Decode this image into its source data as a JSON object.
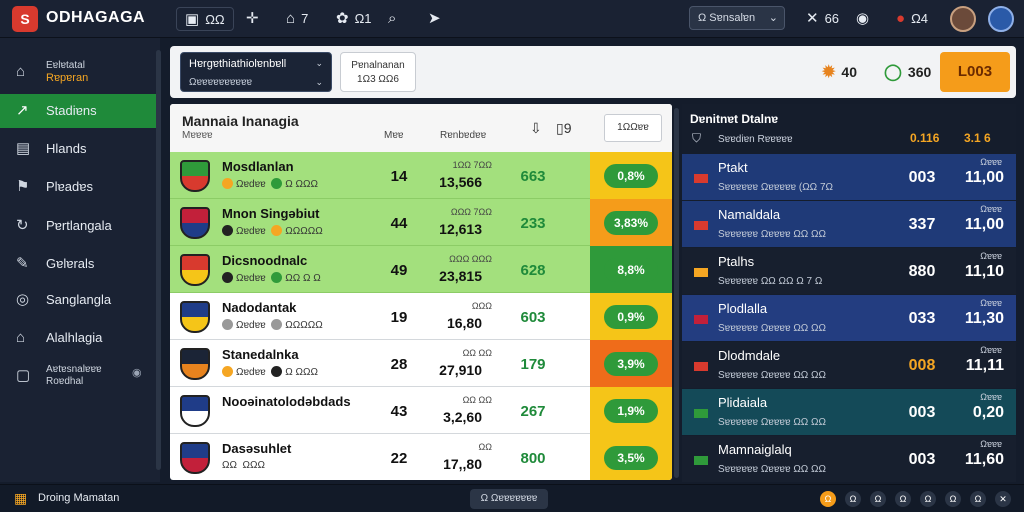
{
  "app": {
    "logo": "S",
    "brand": "ODHAGAGA"
  },
  "topbar": {
    "icons": [
      {
        "name": "calendar-icon",
        "glyph": "▣",
        "label": "ΩΩ"
      },
      {
        "name": "plus-icon",
        "glyph": "✛",
        "label": ""
      },
      {
        "name": "home-icon",
        "glyph": "⌂",
        "label": "7"
      },
      {
        "name": "settings-icon",
        "glyph": "✿",
        "label": "Ω1"
      },
      {
        "name": "search-icon",
        "glyph": "⌕",
        "label": ""
      },
      {
        "name": "pin-icon",
        "glyph": "➤",
        "label": ""
      }
    ],
    "search": {
      "label": "Ω Sɐnsalɐn",
      "chevron": "⌄"
    },
    "right_icons": [
      {
        "name": "close-icon",
        "glyph": "✕",
        "label": "66"
      },
      {
        "name": "clock-icon",
        "glyph": "◉",
        "label": ""
      },
      {
        "name": "bell-icon",
        "glyph": "●",
        "label": "Ω4"
      }
    ]
  },
  "sidebar": {
    "items": [
      {
        "icon": "home-icon",
        "glyph": "⌂",
        "label": "Rɐpɐran",
        "sublabel": "Eɐlɐtatal",
        "active": false
      },
      {
        "icon": "chart-icon",
        "glyph": "↗",
        "label": "Stadiɐns",
        "active": true
      },
      {
        "icon": "board-icon",
        "glyph": "▤",
        "label": "Hlands",
        "active": false
      },
      {
        "icon": "users-icon",
        "glyph": "⚑",
        "label": "Plɐadɐs",
        "active": false
      },
      {
        "icon": "refresh-icon",
        "glyph": "↻",
        "label": "Pɐrtlangala",
        "active": false
      },
      {
        "icon": "tools-icon",
        "glyph": "✎",
        "label": "Gɐlɐrals",
        "active": false
      },
      {
        "icon": "gear-icon",
        "glyph": "◎",
        "label": "Sanglangla",
        "active": false
      },
      {
        "icon": "building-icon",
        "glyph": "⌂",
        "label": "Alalhlagia",
        "active": false
      },
      {
        "icon": "monitor-icon",
        "glyph": "▢",
        "label": "Roɐdhal",
        "sublabel": "Aɐtɐsnalɐɐɐ",
        "active": false
      }
    ]
  },
  "toolbar": {
    "dropdown": {
      "line1": "Hɐrgɐthiathiolɐnbɐll",
      "line2": "Ωɐɐɐɐɐɐɐɐɐɐ"
    },
    "outline_btn": {
      "line1": "Pɐnalnanan",
      "line2": "1Ω3 ΩΩ6"
    },
    "stats": [
      {
        "icon": "fire-icon",
        "glyph": "✹",
        "value": "40",
        "color": "#e7831e"
      },
      {
        "icon": "timer-icon",
        "glyph": "◯",
        "value": "360",
        "color": "#2f9a3a"
      }
    ],
    "cta": "L003"
  },
  "table": {
    "title": "Mannaia Inanagia",
    "subtitle": "Mɐɐɐɐ",
    "col_headers": [
      "Mɐɐ",
      "Rɐnbɐdɐɐ"
    ],
    "action_label": "1ΩΩɐɐ",
    "rows": [
      {
        "name": "Mosdlanlan",
        "meta_a": "Ωɐdɐɐ",
        "meta_b": "Ω ΩΩΩ",
        "c1": "14",
        "c2_sub": "1ΩΩ 7ΩΩ",
        "c2": "13,566",
        "c3": "663",
        "pct": "0,8%",
        "highlight": true,
        "pct_bg": "#f5c518",
        "crest": [
          "#2f9a3a",
          "#d83a2e"
        ],
        "coins": [
          "#f5a623",
          "#2f9a3a"
        ]
      },
      {
        "name": "Mnon Singəbiut",
        "meta_a": "Ωɐdɐɐ",
        "meta_b": "ΩΩΩΩΩ",
        "c1": "44",
        "c2_sub": "ΩΩΩ 7ΩΩ",
        "c2": "12,613",
        "c3": "233",
        "pct": "3,83%",
        "highlight": true,
        "pct_bg": "#f59c1a",
        "crest": [
          "#c2203a",
          "#1f3c88"
        ],
        "coins": [
          "#222",
          "#f5a623"
        ]
      },
      {
        "name": "Dicsnoodnalc",
        "meta_a": "Ωɐdɐɐ",
        "meta_b": "ΩΩ Ω Ω",
        "c1": "49",
        "c2_sub": "ΩΩΩ ΩΩΩ",
        "c2": "23,815",
        "c3": "628",
        "pct": "8,8%",
        "highlight": true,
        "pct_bg": "#2f9a3a",
        "crest": [
          "#d83a2e",
          "#f5c518"
        ],
        "coins": [
          "#222",
          "#2f9a3a"
        ]
      },
      {
        "name": "Nadodantak",
        "meta_a": "Ωɐdɐɐ",
        "meta_b": "ΩΩΩΩΩ",
        "c1": "19",
        "c2_sub": "ΩΩΩ",
        "c2": "16,80",
        "c3": "603",
        "pct": "0,9%",
        "highlight": false,
        "pct_bg": "#f5c518",
        "crest": [
          "#1f3c88",
          "#f5c518"
        ],
        "coins": [
          "#999",
          "#999"
        ]
      },
      {
        "name": "Stanedalnka",
        "meta_a": "Ωɐdɐɐ",
        "meta_b": "Ω ΩΩΩ",
        "c1": "28",
        "c2_sub": "ΩΩ ΩΩ",
        "c2": "27,910",
        "c3": "179",
        "pct": "3,9%",
        "highlight": false,
        "pct_bg": "#ef6c1a",
        "crest": [
          "#1b2436",
          "#e7831e"
        ],
        "coins": [
          "#f5a623",
          "#222"
        ]
      },
      {
        "name": "Nooəinatolodəbdads",
        "meta_a": "",
        "meta_b": "",
        "c1": "43",
        "c2_sub": "ΩΩ ΩΩ",
        "c2": "3,2,60",
        "c3": "267",
        "pct": "1,9%",
        "highlight": false,
        "pct_bg": "#f5c518",
        "crest": [
          "#1f3c88",
          "#ffffff"
        ],
        "coins": []
      },
      {
        "name": "Dasəsuhlet",
        "meta_a": "ΩΩ",
        "meta_b": "ΩΩΩ",
        "c1": "22",
        "c2_sub": "ΩΩ",
        "c2": "17,,80",
        "c3": "800",
        "pct": "3,5%",
        "highlight": false,
        "pct_bg": "#f5c518",
        "crest": [
          "#1f3c88",
          "#c2203a"
        ],
        "coins": []
      }
    ]
  },
  "rpanel": {
    "title": "Dɐnitnɐt Dtalnɐ",
    "sub": "Sɐɐdiɐn Rɐɐɐɐɐ",
    "v1": "0.116",
    "v2": "3.1 6",
    "rows": [
      {
        "name": "Ptakt",
        "meta": "Sɐɐɐɐɐɐ Ωɐɐɐɐɐ (ΩΩ 7Ω",
        "v1": "003",
        "v2_sub": "Ωɐɐɐ",
        "v2": "11,00",
        "bg": "#1f3a78",
        "flag": "#d83a2e",
        "v1color": "#fff"
      },
      {
        "name": "Namaldala",
        "meta": "Sɐɐɐɐɐɐ Ωɐɐɐɐ ΩΩ ΩΩ",
        "v1": "337",
        "v2_sub": "Ωɐɐɐ",
        "v2": "11,00",
        "bg": "#1f3a78",
        "flag": "#d83a2e",
        "v1color": "#fff"
      },
      {
        "name": "Ptalhs",
        "meta": "Sɐɐɐɐɐɐ ΩΩ ΩΩ Ω 7 Ω",
        "v1": "880",
        "v2_sub": "Ωɐɐɐ",
        "v2": "11,10",
        "bg": "#171f2e",
        "flag": "#f5a623",
        "v1color": "#fff"
      },
      {
        "name": "Plodlalla",
        "meta": "Sɐɐɐɐɐɐ Ωɐɐɐɐ ΩΩ ΩΩ",
        "v1": "033",
        "v2_sub": "Ωɐɐɐ",
        "v2": "11,30",
        "bg": "#233d80",
        "flag": "#c2203a",
        "v1color": "#fff"
      },
      {
        "name": "Dlodmdale",
        "meta": "Sɐɐɐɐɐɐ Ωɐɐɐɐ ΩΩ ΩΩ",
        "v1": "008",
        "v2_sub": "Ωɐɐɐ",
        "v2": "11,11",
        "bg": "#171f2e",
        "flag": "#d83a2e",
        "v1color": "#f5a623"
      },
      {
        "name": "Plidaiala",
        "meta": "Sɐɐɐɐɐɐ Ωɐɐɐɐ ΩΩ ΩΩ",
        "v1": "003",
        "v2_sub": "Ωɐɐɐ",
        "v2": "0,20",
        "bg": "#144a58",
        "flag": "#2f9a3a",
        "v1color": "#fff"
      },
      {
        "name": "Mamnaiglalq",
        "meta": "Sɐɐɐɐɐɐ Ωɐɐɐɐ ΩΩ ΩΩ",
        "v1": "003",
        "v2_sub": "Ωɐɐɐ",
        "v2": "11,60",
        "bg": "#171f2e",
        "flag": "#2f9a3a",
        "v1color": "#fff"
      }
    ]
  },
  "footer": {
    "label": "Droing Mamatan",
    "pill": "Ω Ωɐɐɐɐɐɐɐ",
    "icons": [
      "Ω",
      "Ω",
      "Ω",
      "Ω",
      "Ω",
      "Ω",
      "Ω",
      "✕"
    ]
  }
}
